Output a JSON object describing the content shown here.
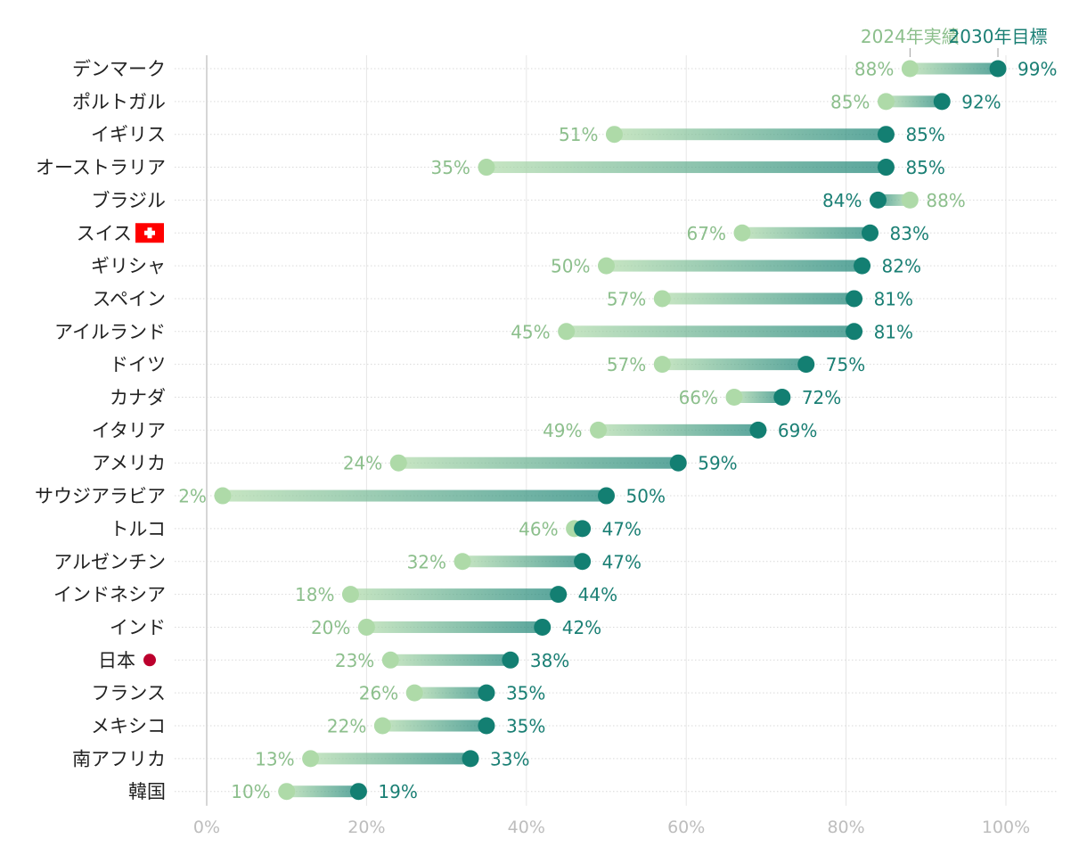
{
  "chart_data": {
    "type": "dumbbell",
    "title": "",
    "xlabel": "",
    "ylabel": "",
    "xlim": [
      0,
      100
    ],
    "xticks": [
      0,
      20,
      40,
      60,
      80,
      100
    ],
    "xtick_labels": [
      "0%",
      "20%",
      "40%",
      "60%",
      "80%",
      "100%"
    ],
    "legend": {
      "series_2024": "2024年実績",
      "series_2030": "2030年目標",
      "placement": "top-right"
    },
    "colors": {
      "c2024": "#aedaa8",
      "c2030": "#137f72",
      "label2024": "#8cbf8c",
      "label2030": "#1a7f74",
      "japan_marker": "#bc002d",
      "swiss_flag": "#ff0000"
    },
    "rows": [
      {
        "country": "デンマーク",
        "v2024": 88,
        "v2030": 99
      },
      {
        "country": "ポルトガル",
        "v2024": 85,
        "v2030": 92
      },
      {
        "country": "イギリス",
        "v2024": 51,
        "v2030": 85
      },
      {
        "country": "オーストラリア",
        "v2024": 35,
        "v2030": 85
      },
      {
        "country": "ブラジル",
        "v2024": 88,
        "v2030": 84
      },
      {
        "country": "スイス",
        "v2024": 67,
        "v2030": 83,
        "marker": "swiss-flag"
      },
      {
        "country": "ギリシャ",
        "v2024": 50,
        "v2030": 82
      },
      {
        "country": "スペイン",
        "v2024": 57,
        "v2030": 81
      },
      {
        "country": "アイルランド",
        "v2024": 45,
        "v2030": 81
      },
      {
        "country": "ドイツ",
        "v2024": 57,
        "v2030": 75
      },
      {
        "country": "カナダ",
        "v2024": 66,
        "v2030": 72
      },
      {
        "country": "イタリア",
        "v2024": 49,
        "v2030": 69
      },
      {
        "country": "アメリカ",
        "v2024": 24,
        "v2030": 59
      },
      {
        "country": "サウジアラビア",
        "v2024": 2,
        "v2030": 50
      },
      {
        "country": "トルコ",
        "v2024": 46,
        "v2030": 47
      },
      {
        "country": "アルゼンチン",
        "v2024": 32,
        "v2030": 47
      },
      {
        "country": "インドネシア",
        "v2024": 18,
        "v2030": 44
      },
      {
        "country": "インド",
        "v2024": 20,
        "v2030": 42
      },
      {
        "country": "日本",
        "v2024": 23,
        "v2030": 38,
        "marker": "japan-dot"
      },
      {
        "country": "フランス",
        "v2024": 26,
        "v2030": 35
      },
      {
        "country": "メキシコ",
        "v2024": 22,
        "v2030": 35
      },
      {
        "country": "南アフリカ",
        "v2024": 13,
        "v2030": 33
      },
      {
        "country": "韓国",
        "v2024": 10,
        "v2030": 19
      }
    ]
  }
}
